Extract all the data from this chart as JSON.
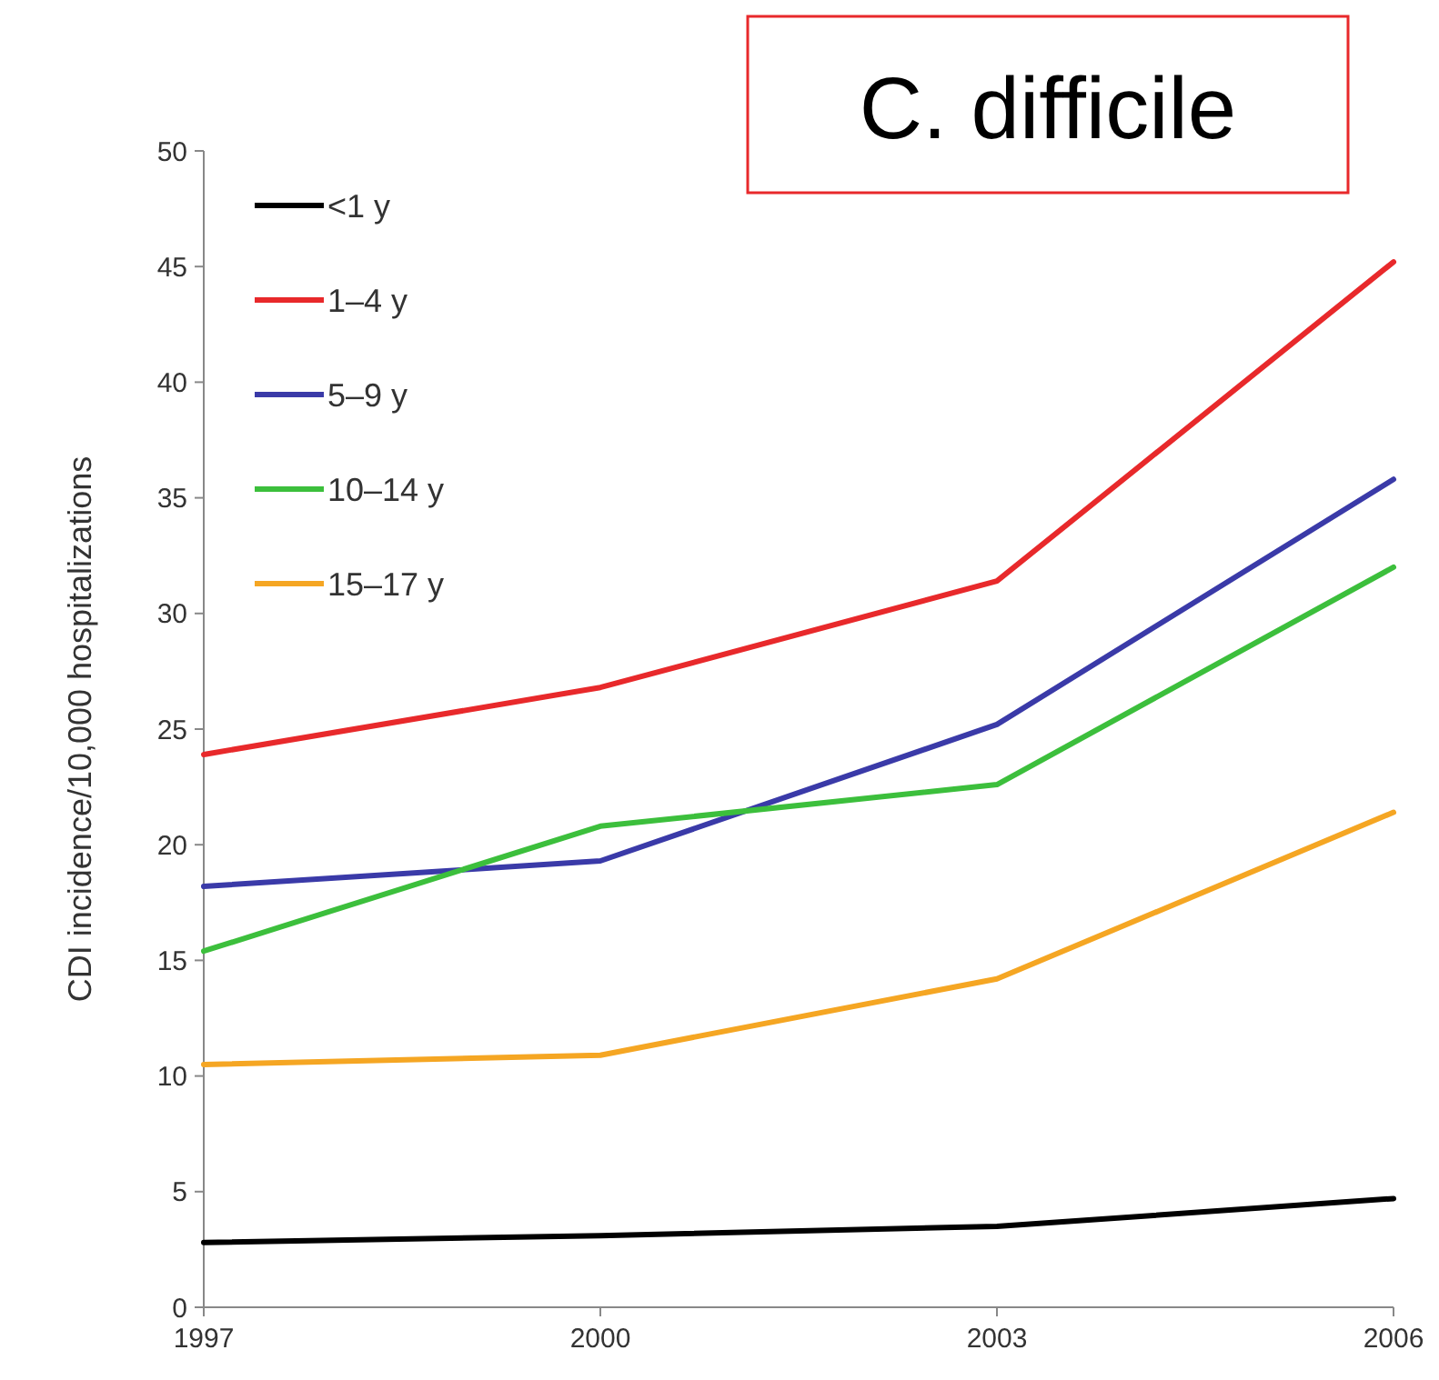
{
  "chart_data": {
    "type": "line",
    "title": "C. difficile",
    "ylabel": "CDI incidence/10,000 hospitalizations",
    "x": [
      1997,
      2000,
      2003,
      2006
    ],
    "xlim": [
      1997,
      2006
    ],
    "xticks": [
      1997,
      2000,
      2003,
      2006
    ],
    "ylim": [
      0,
      50
    ],
    "yticks": [
      0,
      5,
      10,
      15,
      20,
      25,
      30,
      35,
      40,
      45,
      50
    ],
    "grid": false,
    "legend": "top left",
    "marker": "none",
    "line_style": "solid",
    "series": [
      {
        "name": "<1 y",
        "color": "#000000",
        "values": [
          2.8,
          3.1,
          3.5,
          4.7
        ]
      },
      {
        "name": "1–4 y",
        "color": "#e8292b",
        "values": [
          23.9,
          26.8,
          31.4,
          45.2
        ]
      },
      {
        "name": "5–9 y",
        "color": "#3a3aa8",
        "values": [
          18.2,
          19.3,
          25.2,
          35.8
        ]
      },
      {
        "name": "10–14 y",
        "color": "#3cbf3c",
        "values": [
          15.4,
          20.8,
          22.6,
          32.0
        ]
      },
      {
        "name": "15–17 y",
        "color": "#f5a623",
        "values": [
          10.5,
          10.9,
          14.2,
          21.4
        ]
      }
    ]
  }
}
